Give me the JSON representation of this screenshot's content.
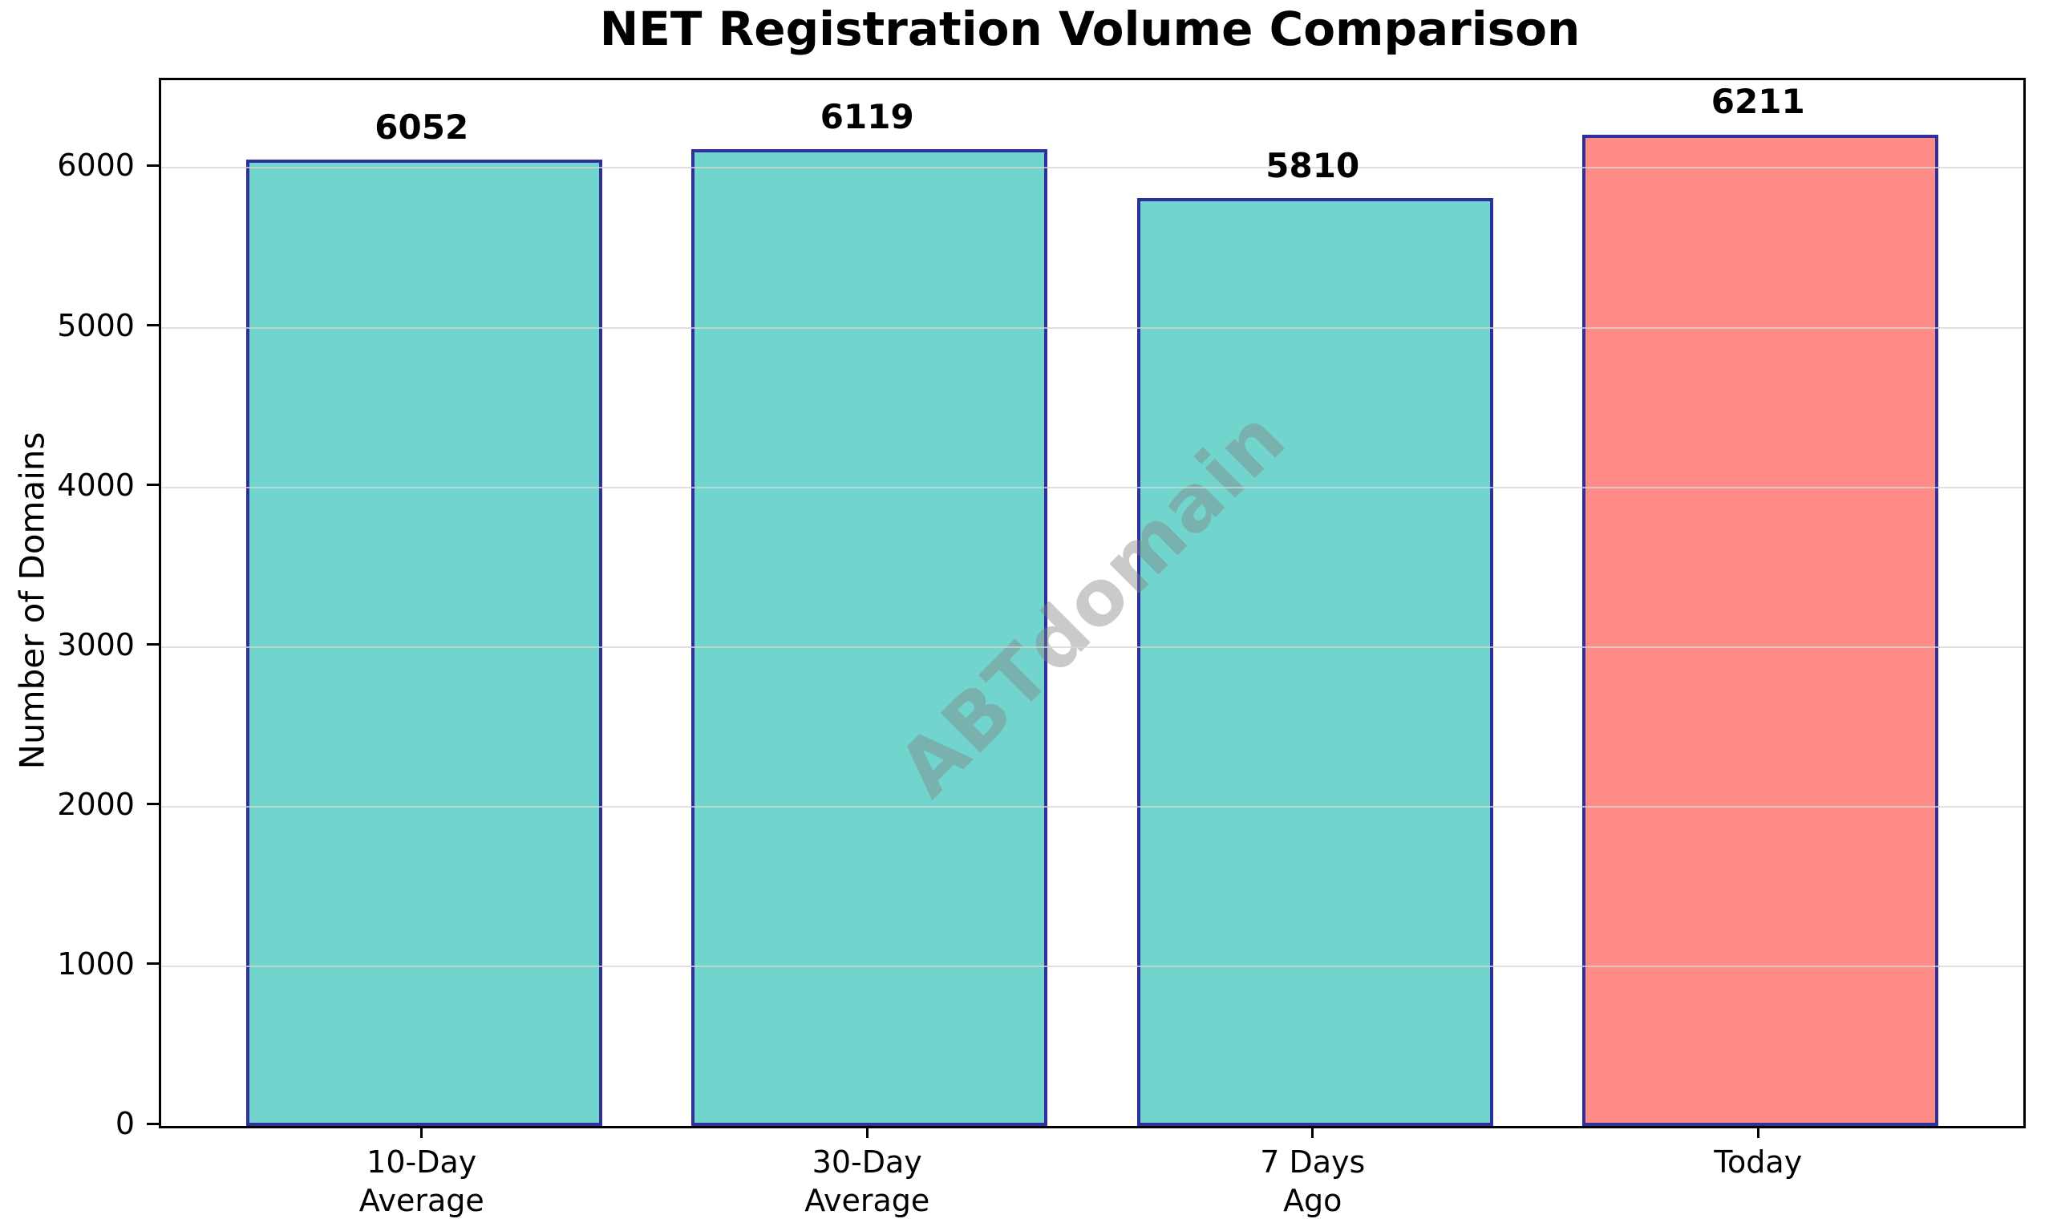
{
  "figure": {
    "title": "NET Registration Volume Comparison"
  },
  "chart_data": {
    "type": "bar",
    "title": "NET Registration Volume Comparison",
    "categories": [
      "10-Day Average",
      "30-Day Average",
      "7 Days Ago",
      "Today"
    ],
    "category_lines": [
      [
        "10-Day",
        "Average"
      ],
      [
        "30-Day",
        "Average"
      ],
      [
        "7 Days",
        "Ago"
      ],
      [
        "Today"
      ]
    ],
    "values": [
      6052,
      6119,
      5810,
      6211
    ],
    "bar_value_labels": [
      "6052",
      "6119",
      "5810",
      "6211"
    ],
    "xlabel": "",
    "ylabel": "Number of Domains",
    "ylim": [
      0,
      6550
    ],
    "yticks": [
      0,
      1000,
      2000,
      3000,
      4000,
      5000,
      6000
    ],
    "ytick_labels": [
      "0",
      "1000",
      "2000",
      "3000",
      "4000",
      "5000",
      "6000"
    ],
    "grid": "horizontal, light gray, drawn over bars",
    "legend": "none",
    "bar_width_fraction": 0.8,
    "bar_colors": [
      "#72D5CD",
      "#72D5CD",
      "#72D5CD",
      "#FF8B87"
    ],
    "bar_edge_color": "#30309C",
    "watermark": {
      "text": "ABTdomain",
      "color": "#808080",
      "rotation_deg": 45,
      "position": "center"
    }
  }
}
